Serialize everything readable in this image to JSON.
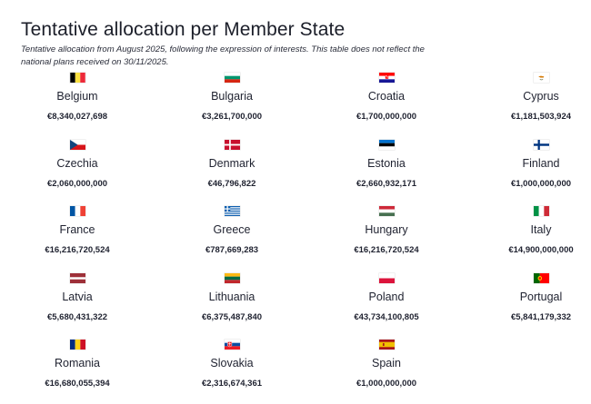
{
  "title": "Tentative allocation per Member State",
  "subtitle": "Tentative allocation from August 2025, following the expression of interests. This table does not reflect the national plans received on 30/11/2025.",
  "states": [
    {
      "name": "Belgium",
      "amount": "€8,340,027,698",
      "flag": "be-flag-icon"
    },
    {
      "name": "Bulgaria",
      "amount": "€3,261,700,000",
      "flag": "bg-flag-icon"
    },
    {
      "name": "Croatia",
      "amount": "€1,700,000,000",
      "flag": "hr-flag-icon"
    },
    {
      "name": "Cyprus",
      "amount": "€1,181,503,924",
      "flag": "cy-flag-icon"
    },
    {
      "name": "Czechia",
      "amount": "€2,060,000,000",
      "flag": "cz-flag-icon"
    },
    {
      "name": "Denmark",
      "amount": "€46,796,822",
      "flag": "dk-flag-icon"
    },
    {
      "name": "Estonia",
      "amount": "€2,660,932,171",
      "flag": "ee-flag-icon"
    },
    {
      "name": "Finland",
      "amount": "€1,000,000,000",
      "flag": "fi-flag-icon"
    },
    {
      "name": "France",
      "amount": "€16,216,720,524",
      "flag": "fr-flag-icon"
    },
    {
      "name": "Greece",
      "amount": "€787,669,283",
      "flag": "gr-flag-icon"
    },
    {
      "name": "Hungary",
      "amount": "€16,216,720,524",
      "flag": "hu-flag-icon"
    },
    {
      "name": "Italy",
      "amount": "€14,900,000,000",
      "flag": "it-flag-icon"
    },
    {
      "name": "Latvia",
      "amount": "€5,680,431,322",
      "flag": "lv-flag-icon"
    },
    {
      "name": "Lithuania",
      "amount": "€6,375,487,840",
      "flag": "lt-flag-icon"
    },
    {
      "name": "Poland",
      "amount": "€43,734,100,805",
      "flag": "pl-flag-icon"
    },
    {
      "name": "Portugal",
      "amount": "€5,841,179,332",
      "flag": "pt-flag-icon"
    },
    {
      "name": "Romania",
      "amount": "€16,680,055,394",
      "flag": "ro-flag-icon"
    },
    {
      "name": "Slovakia",
      "amount": "€2,316,674,361",
      "flag": "sk-flag-icon"
    },
    {
      "name": "Spain",
      "amount": "€1,000,000,000",
      "flag": "es-flag-icon"
    }
  ]
}
